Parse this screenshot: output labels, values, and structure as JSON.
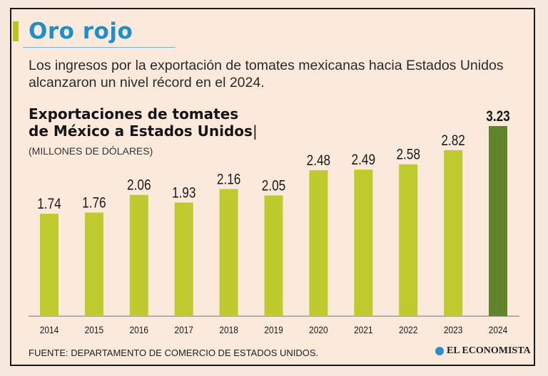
{
  "headline": "Oro rojo",
  "dek": "Los ingresos por la exportación de tomates mexicanas hacia Estados Unidos alcanzaron un nivel récord en el 2024.",
  "chart_data": {
    "type": "bar",
    "title_line1": "Exportaciones de tomates",
    "title_line2": "de México a Estados Unidos",
    "title_cursor": "|",
    "unit": "(MILLONES DE DÓLARES)",
    "categories": [
      "2014",
      "2015",
      "2016",
      "2017",
      "2018",
      "2019",
      "2020",
      "2021",
      "2022",
      "2023",
      "2024"
    ],
    "values": [
      1.74,
      1.76,
      2.06,
      1.93,
      2.16,
      2.05,
      2.48,
      2.49,
      2.58,
      2.82,
      3.23
    ],
    "value_labels": [
      "1.74",
      "1.76",
      "2.06",
      "1.93",
      "2.16",
      "2.05",
      "2.48",
      "2.49",
      "2.58",
      "2.82",
      "3.23"
    ],
    "ylim": [
      0,
      3.23
    ],
    "grid": false,
    "colors": {
      "bar": "#bfca2f",
      "highlight": "#5f8429",
      "baseline": "#9a9a9a"
    }
  },
  "source": "FUENTE: DEPARTAMENTO DE COMERCIO DE ESTADOS UNIDOS.",
  "brand": "EL ECONOMISTA"
}
